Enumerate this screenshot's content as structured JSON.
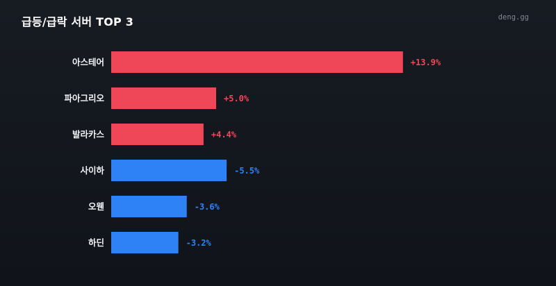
{
  "header": {
    "title": "급등/급락 서버 TOP 3",
    "brand": "deng.gg"
  },
  "colors": {
    "up": "#f04758",
    "down": "#2f82f5"
  },
  "chart_data": {
    "type": "bar",
    "orientation": "horizontal",
    "title": "급등/급락 서버 TOP 3",
    "categories": [
      "아스테어",
      "파아그리오",
      "발라카스",
      "사이하",
      "오웬",
      "하딘"
    ],
    "values": [
      13.9,
      5.0,
      4.4,
      -5.5,
      -3.6,
      -3.2
    ],
    "value_labels": [
      "+13.9%",
      "+5.0%",
      "+4.4%",
      "-5.5%",
      "-3.6%",
      "-3.2%"
    ],
    "bar_length": "absolute value",
    "grid": false,
    "legend": "none"
  }
}
